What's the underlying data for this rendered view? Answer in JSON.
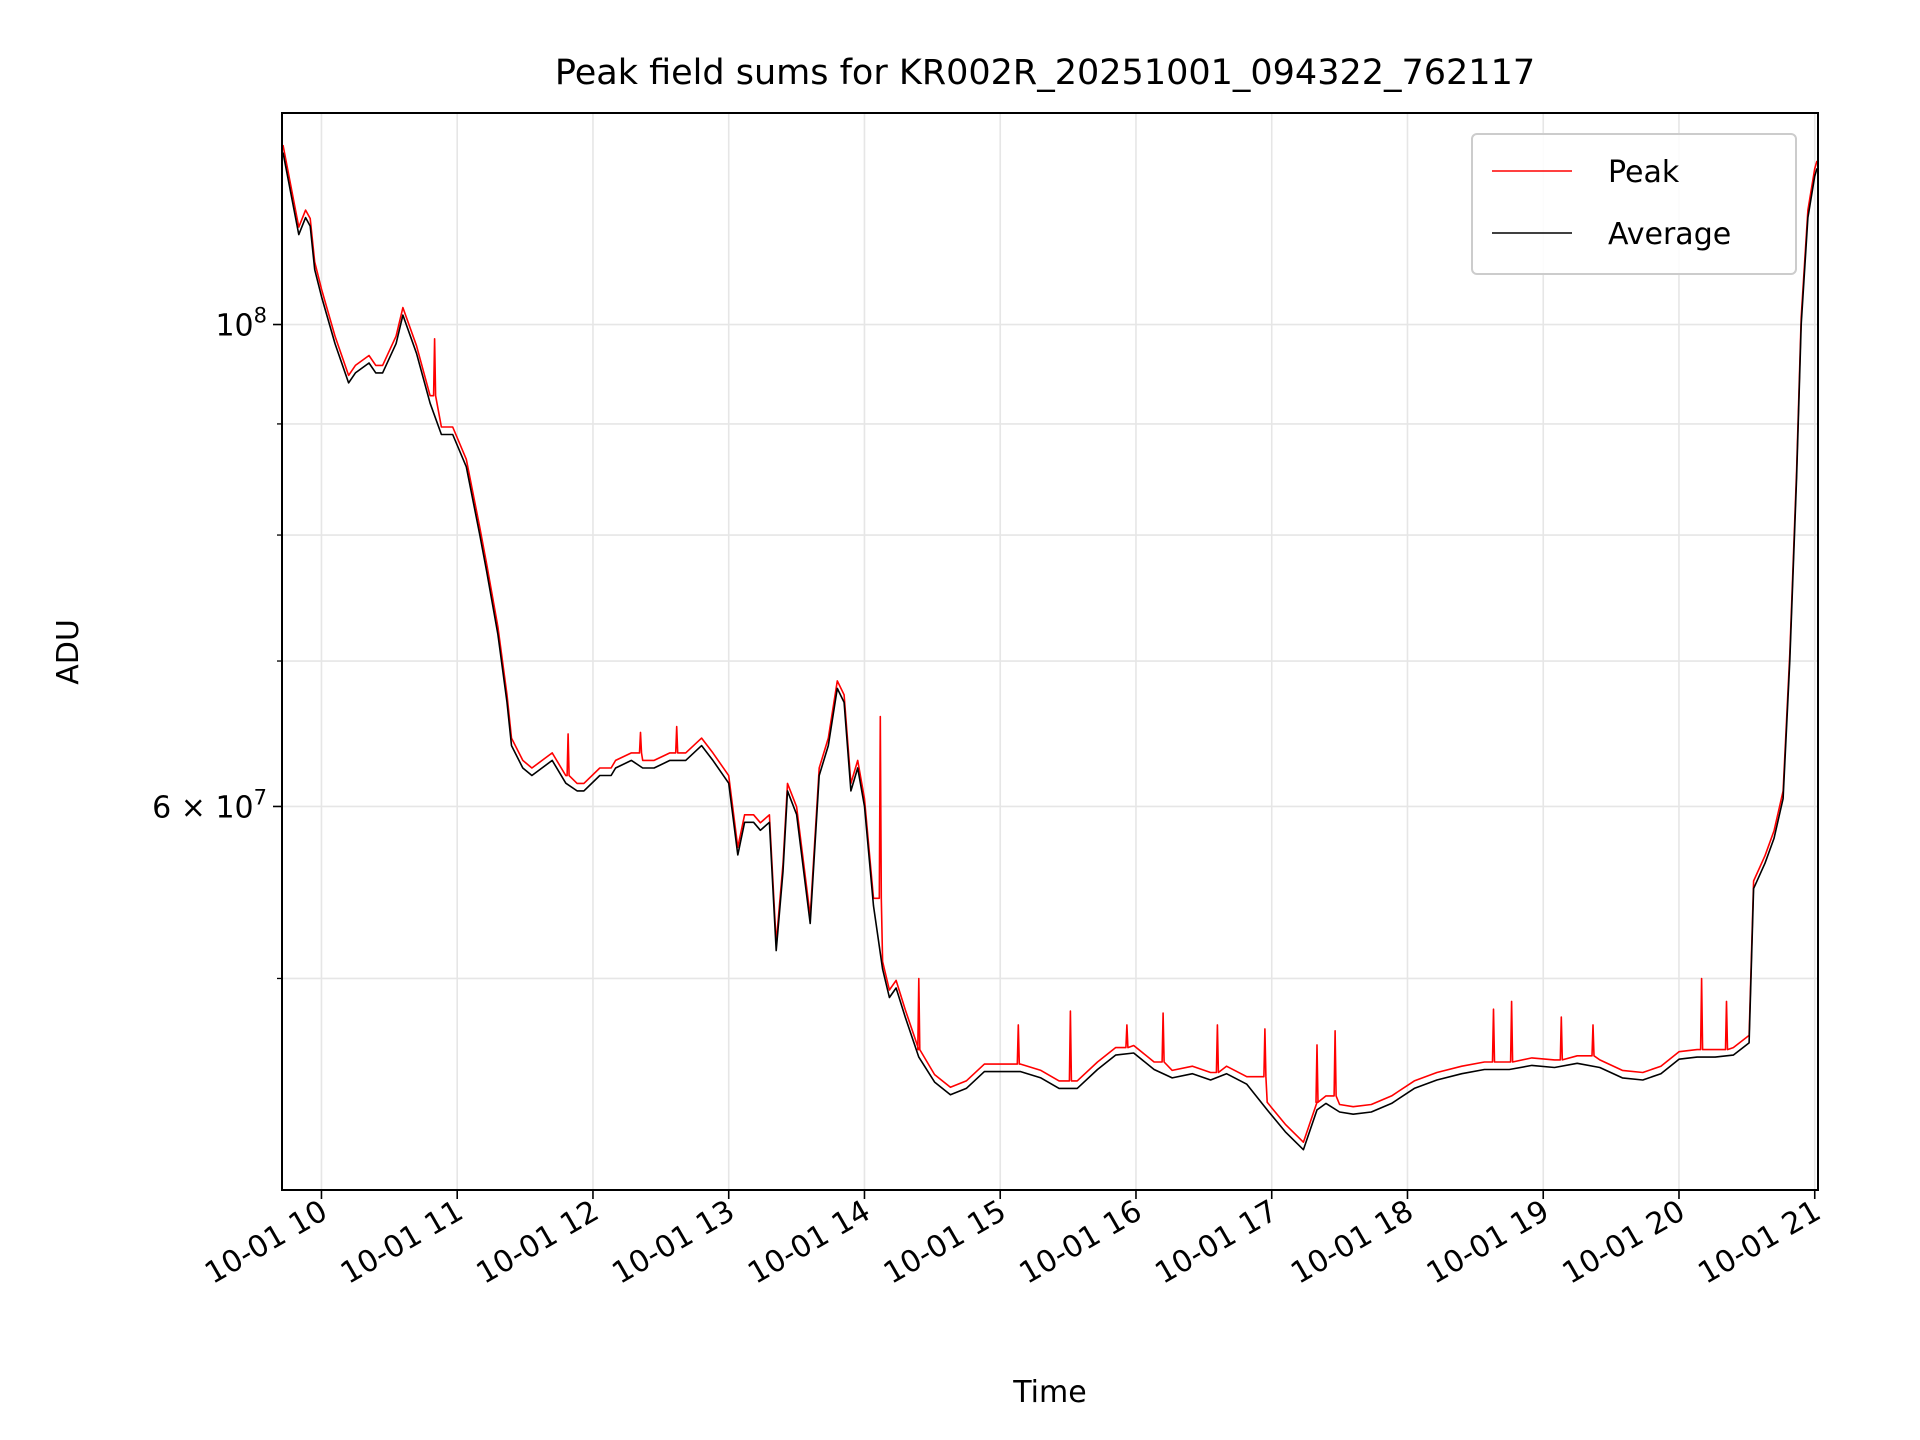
{
  "chart_data": {
    "type": "line",
    "title": "Peak field sums for KR002R_20251001_094322_762117",
    "xlabel": "Time",
    "ylabel": "ADU",
    "y_scale": "log",
    "ylim": [
      40000000,
      125000000
    ],
    "xlim": [
      "2025-10-01 09:43",
      "2025-10-01 21:01"
    ],
    "grid": true,
    "legend_position": "upper right",
    "x_ticks": [
      "10-01 10",
      "10-01 11",
      "10-01 12",
      "10-01 13",
      "10-01 14",
      "10-01 15",
      "10-01 16",
      "10-01 17",
      "10-01 18",
      "10-01 19",
      "10-01 20",
      "10-01 21"
    ],
    "x_tick_times": [
      "2025-10-01 10:00",
      "2025-10-01 11:00",
      "2025-10-01 12:00",
      "2025-10-01 13:00",
      "2025-10-01 14:00",
      "2025-10-01 15:00",
      "2025-10-01 16:00",
      "2025-10-01 17:00",
      "2025-10-01 18:00",
      "2025-10-01 19:00",
      "2025-10-01 20:00",
      "2025-10-01 21:00"
    ],
    "y_ticks_major": [
      {
        "value": 100000000,
        "mantissa": "",
        "base": "10",
        "exp": "8"
      },
      {
        "value": 60000000,
        "mantissa": "6 × ",
        "base": "10",
        "exp": "7"
      }
    ],
    "y_ticks_minor": [
      50000000,
      70000000,
      80000000,
      90000000
    ],
    "series": [
      {
        "name": "Average",
        "color": "#000000",
        "x": [
          "2025-10-01 09:43",
          "2025-10-01 09:50",
          "2025-10-01 09:53",
          "2025-10-01 09:55",
          "2025-10-01 09:57",
          "2025-10-01 10:00",
          "2025-10-01 10:06",
          "2025-10-01 10:12",
          "2025-10-01 10:15",
          "2025-10-01 10:21",
          "2025-10-01 10:24",
          "2025-10-01 10:27",
          "2025-10-01 10:33",
          "2025-10-01 10:36",
          "2025-10-01 10:42",
          "2025-10-01 10:48",
          "2025-10-01 10:53",
          "2025-10-01 10:58",
          "2025-10-01 11:04",
          "2025-10-01 11:10",
          "2025-10-01 11:13",
          "2025-10-01 11:18",
          "2025-10-01 11:22",
          "2025-10-01 11:24",
          "2025-10-01 11:29",
          "2025-10-01 11:33",
          "2025-10-01 11:42",
          "2025-10-01 11:48",
          "2025-10-01 11:53",
          "2025-10-01 11:56",
          "2025-10-01 12:03",
          "2025-10-01 12:08",
          "2025-10-01 12:10",
          "2025-10-01 12:17",
          "2025-10-01 12:22",
          "2025-10-01 12:27",
          "2025-10-01 12:34",
          "2025-10-01 12:41",
          "2025-10-01 12:48",
          "2025-10-01 12:53",
          "2025-10-01 13:00",
          "2025-10-01 13:04",
          "2025-10-01 13:07",
          "2025-10-01 13:11",
          "2025-10-01 13:14",
          "2025-10-01 13:18",
          "2025-10-01 13:21",
          "2025-10-01 13:24",
          "2025-10-01 13:26",
          "2025-10-01 13:30",
          "2025-10-01 13:36",
          "2025-10-01 13:40",
          "2025-10-01 13:44",
          "2025-10-01 13:48",
          "2025-10-01 13:51",
          "2025-10-01 13:54",
          "2025-10-01 13:57",
          "2025-10-01 14:00",
          "2025-10-01 14:04",
          "2025-10-01 14:08",
          "2025-10-01 14:11",
          "2025-10-01 14:14",
          "2025-10-01 14:18",
          "2025-10-01 14:24",
          "2025-10-01 14:31",
          "2025-10-01 14:38",
          "2025-10-01 14:45",
          "2025-10-01 14:53",
          "2025-10-01 15:01",
          "2025-10-01 15:09",
          "2025-10-01 15:18",
          "2025-10-01 15:26",
          "2025-10-01 15:34",
          "2025-10-01 15:43",
          "2025-10-01 15:51",
          "2025-10-01 15:59",
          "2025-10-01 16:08",
          "2025-10-01 16:16",
          "2025-10-01 16:25",
          "2025-10-01 16:33",
          "2025-10-01 16:40",
          "2025-10-01 16:49",
          "2025-10-01 16:58",
          "2025-10-01 17:06",
          "2025-10-01 17:14",
          "2025-10-01 17:20",
          "2025-10-01 17:24",
          "2025-10-01 17:30",
          "2025-10-01 17:36",
          "2025-10-01 17:44",
          "2025-10-01 17:53",
          "2025-10-01 18:03",
          "2025-10-01 18:13",
          "2025-10-01 18:24",
          "2025-10-01 18:34",
          "2025-10-01 18:45",
          "2025-10-01 18:55",
          "2025-10-01 19:05",
          "2025-10-01 19:15",
          "2025-10-01 19:25",
          "2025-10-01 19:35",
          "2025-10-01 19:44",
          "2025-10-01 19:52",
          "2025-10-01 20:00",
          "2025-10-01 20:08",
          "2025-10-01 20:16",
          "2025-10-01 20:24",
          "2025-10-01 20:31",
          "2025-10-01 20:33",
          "2025-10-01 20:38",
          "2025-10-01 20:42",
          "2025-10-01 20:46",
          "2025-10-01 20:49",
          "2025-10-01 20:52",
          "2025-10-01 20:54",
          "2025-10-01 20:57",
          "2025-10-01 21:00",
          "2025-10-01 21:01"
        ],
        "y": [
          120000000,
          110000000,
          112000000,
          111000000,
          106000000,
          103000000,
          98000000,
          94000000,
          95000000,
          96000000,
          95000000,
          95000000,
          98000000,
          101000000,
          97000000,
          92000000,
          89000000,
          89000000,
          86000000,
          80000000,
          77000000,
          72000000,
          67000000,
          64000000,
          62500000,
          62000000,
          63000000,
          61500000,
          61000000,
          61000000,
          62000000,
          62000000,
          62500000,
          63000000,
          62500000,
          62500000,
          63000000,
          63000000,
          64000000,
          63000000,
          61500000,
          57000000,
          59000000,
          59000000,
          58500000,
          59000000,
          51500000,
          56000000,
          61000000,
          59500000,
          53000000,
          62000000,
          64000000,
          68000000,
          67000000,
          61000000,
          62500000,
          60000000,
          54000000,
          50500000,
          49000000,
          49500000,
          48000000,
          46000000,
          44800000,
          44200000,
          44500000,
          45300000,
          45300000,
          45300000,
          45000000,
          44500000,
          44500000,
          45400000,
          46100000,
          46200000,
          45400000,
          45000000,
          45200000,
          44900000,
          45200000,
          44700000,
          43500000,
          42500000,
          41700000,
          43500000,
          43800000,
          43400000,
          43300000,
          43400000,
          43800000,
          44500000,
          44900000,
          45200000,
          45400000,
          45400000,
          45600000,
          45500000,
          45700000,
          45500000,
          45000000,
          44900000,
          45200000,
          45900000,
          46000000,
          46000000,
          46100000,
          46700000,
          55000000,
          56500000,
          58000000,
          60500000,
          70000000,
          85000000,
          100000000,
          112000000,
          117000000,
          118000000
        ]
      },
      {
        "name": "Peak",
        "color": "#ff0000",
        "spikes": [
          {
            "x": "2025-10-01 10:50",
            "y": 98500000
          },
          {
            "x": "2025-10-01 11:49",
            "y": 64800000
          },
          {
            "x": "2025-10-01 12:21",
            "y": 64900000
          },
          {
            "x": "2025-10-01 12:37",
            "y": 65300000
          },
          {
            "x": "2025-10-01 14:07",
            "y": 66000000
          },
          {
            "x": "2025-10-01 14:24",
            "y": 50000000
          },
          {
            "x": "2025-10-01 15:08",
            "y": 47600000
          },
          {
            "x": "2025-10-01 15:31",
            "y": 48300000
          },
          {
            "x": "2025-10-01 15:56",
            "y": 47600000
          },
          {
            "x": "2025-10-01 16:12",
            "y": 48200000
          },
          {
            "x": "2025-10-01 16:36",
            "y": 47600000
          },
          {
            "x": "2025-10-01 16:57",
            "y": 47400000
          },
          {
            "x": "2025-10-01 17:20",
            "y": 46600000
          },
          {
            "x": "2025-10-01 17:28",
            "y": 47300000
          },
          {
            "x": "2025-10-01 18:38",
            "y": 48400000
          },
          {
            "x": "2025-10-01 18:46",
            "y": 48800000
          },
          {
            "x": "2025-10-01 19:08",
            "y": 48000000
          },
          {
            "x": "2025-10-01 19:22",
            "y": 47600000
          },
          {
            "x": "2025-10-01 20:10",
            "y": 50000000
          },
          {
            "x": "2025-10-01 20:21",
            "y": 48800000
          }
        ]
      }
    ]
  }
}
